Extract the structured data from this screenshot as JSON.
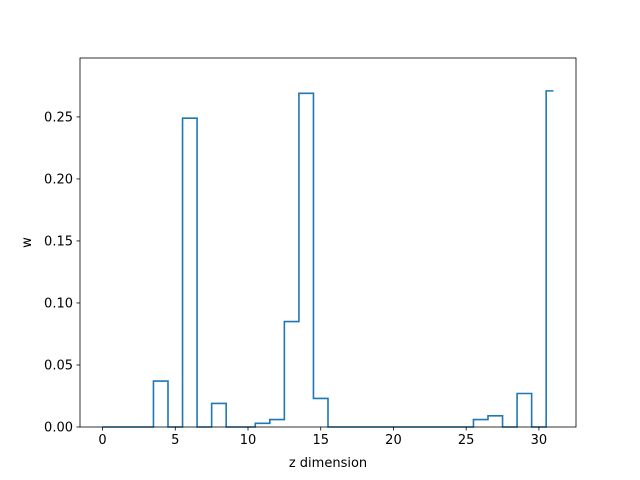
{
  "chart_data": {
    "type": "line",
    "style": "step",
    "title": "",
    "xlabel": "z dimension",
    "ylabel": "w",
    "xlim": [
      -1.55,
      32.55
    ],
    "ylim": [
      0,
      0.2975
    ],
    "xticks": [
      0,
      5,
      10,
      15,
      20,
      25,
      30
    ],
    "yticks": [
      0.0,
      0.05,
      0.1,
      0.15,
      0.2,
      0.25
    ],
    "ytick_labels": [
      "0.00",
      "0.05",
      "0.10",
      "0.15",
      "0.20",
      "0.25"
    ],
    "grid": false,
    "legend": "none",
    "color": "#1f77b4",
    "x": [
      0,
      1,
      2,
      3,
      4,
      5,
      6,
      7,
      8,
      9,
      10,
      11,
      12,
      13,
      14,
      15,
      16,
      17,
      18,
      19,
      20,
      21,
      22,
      23,
      24,
      25,
      26,
      27,
      28,
      29,
      30,
      31
    ],
    "values": [
      0,
      0,
      0,
      0,
      0.037,
      0,
      0.249,
      0,
      0.019,
      0,
      0,
      0.003,
      0.006,
      0.085,
      0.269,
      0.023,
      0,
      0,
      0,
      0,
      0,
      0,
      0,
      0,
      0,
      0,
      0.006,
      0.009,
      0,
      0.027,
      0,
      0.271
    ]
  }
}
